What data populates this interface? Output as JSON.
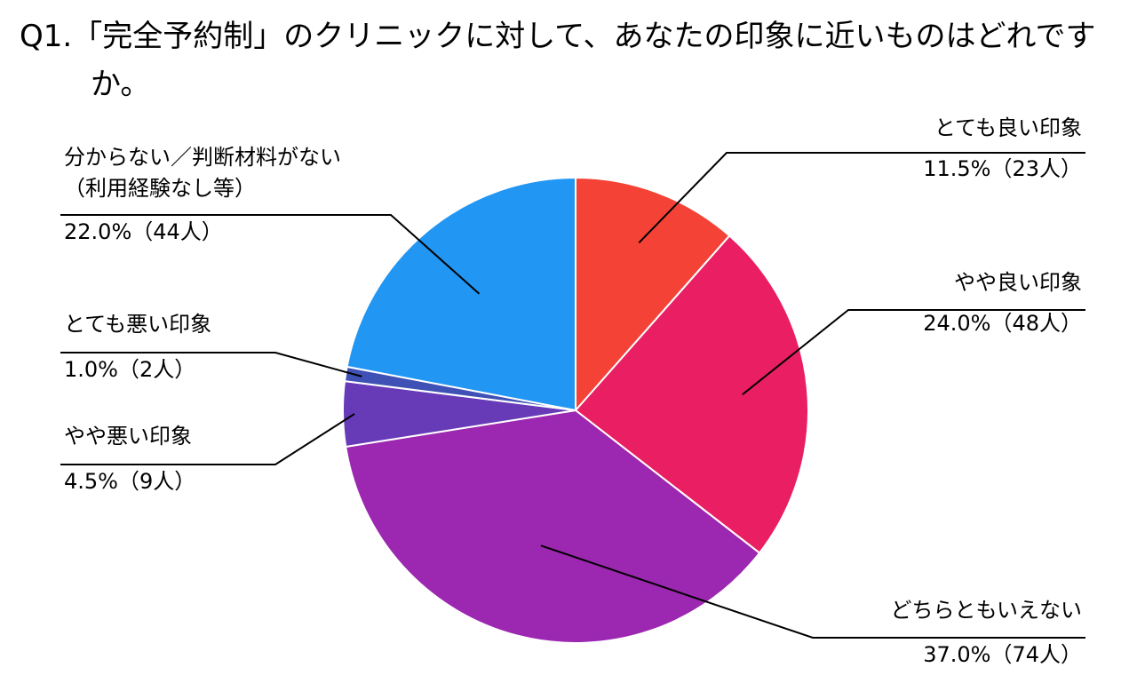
{
  "chart_data": {
    "type": "pie",
    "title": "Q1.「完全予約制」のクリニックに対して、あなたの印象に近いものはどれですか。",
    "categories": [
      "とても良い印象",
      "やや良い印象",
      "どちらともいえない",
      "やや悪い印象",
      "とても悪い印象",
      "分からない／判断材料がない\n（利用経験なし等）"
    ],
    "values": [
      11.5,
      24.0,
      37.0,
      4.5,
      1.0,
      22.0
    ],
    "value_labels": [
      "11.5%（23人）",
      "24.0%（48人）",
      "37.0%（74人）",
      "4.5%（9人）",
      "1.0%（2人）",
      "22.0%（44人）"
    ],
    "colors": [
      "#f44336",
      "#e91e63",
      "#9c27b0",
      "#673ab7",
      "#3f51b5",
      "#2196f3"
    ]
  }
}
